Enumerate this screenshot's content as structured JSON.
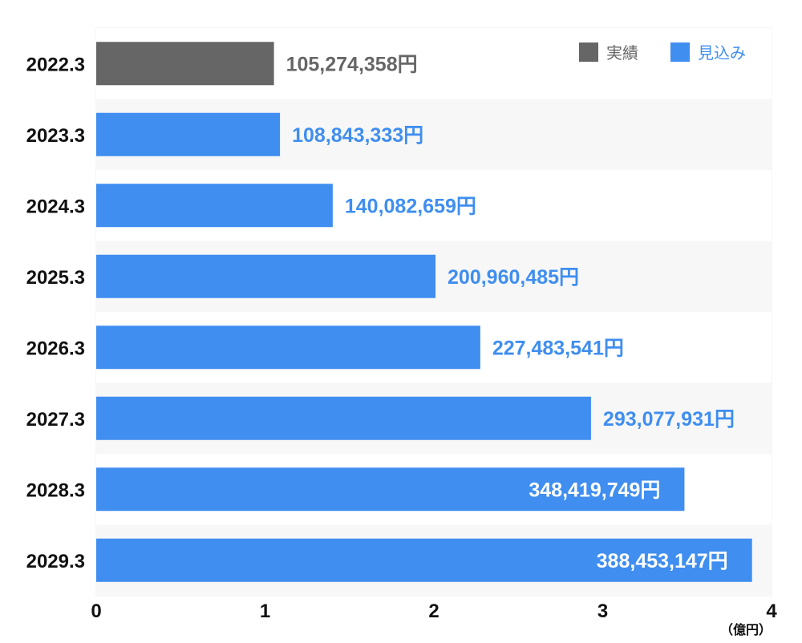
{
  "chart_data": {
    "type": "bar",
    "orientation": "horizontal",
    "categories": [
      "2022.3",
      "2023.3",
      "2024.3",
      "2025.3",
      "2026.3",
      "2027.3",
      "2028.3",
      "2029.3"
    ],
    "values": [
      105274358,
      108843333,
      140082659,
      200960485,
      227483541,
      293077931,
      348419749,
      388453147
    ],
    "value_labels": [
      "105,274,358円",
      "108,843,333円",
      "140,082,659円",
      "200,960,485円",
      "227,483,541円",
      "293,077,931円",
      "348,419,749円",
      "388,453,147円"
    ],
    "bar_series": [
      "実績",
      "見込み",
      "見込み",
      "見込み",
      "見込み",
      "見込み",
      "見込み",
      "見込み"
    ],
    "series": [
      {
        "name": "実績",
        "color": "#666666"
      },
      {
        "name": "見込み",
        "color": "#3f8ef0"
      }
    ],
    "x_unit_divisor": 100000000,
    "xlim": [
      0,
      4
    ],
    "x_ticks": [
      "0",
      "1",
      "2",
      "3",
      "4"
    ],
    "x_unit_label": "（億円）",
    "legend_position": "top-right",
    "grid": false
  }
}
